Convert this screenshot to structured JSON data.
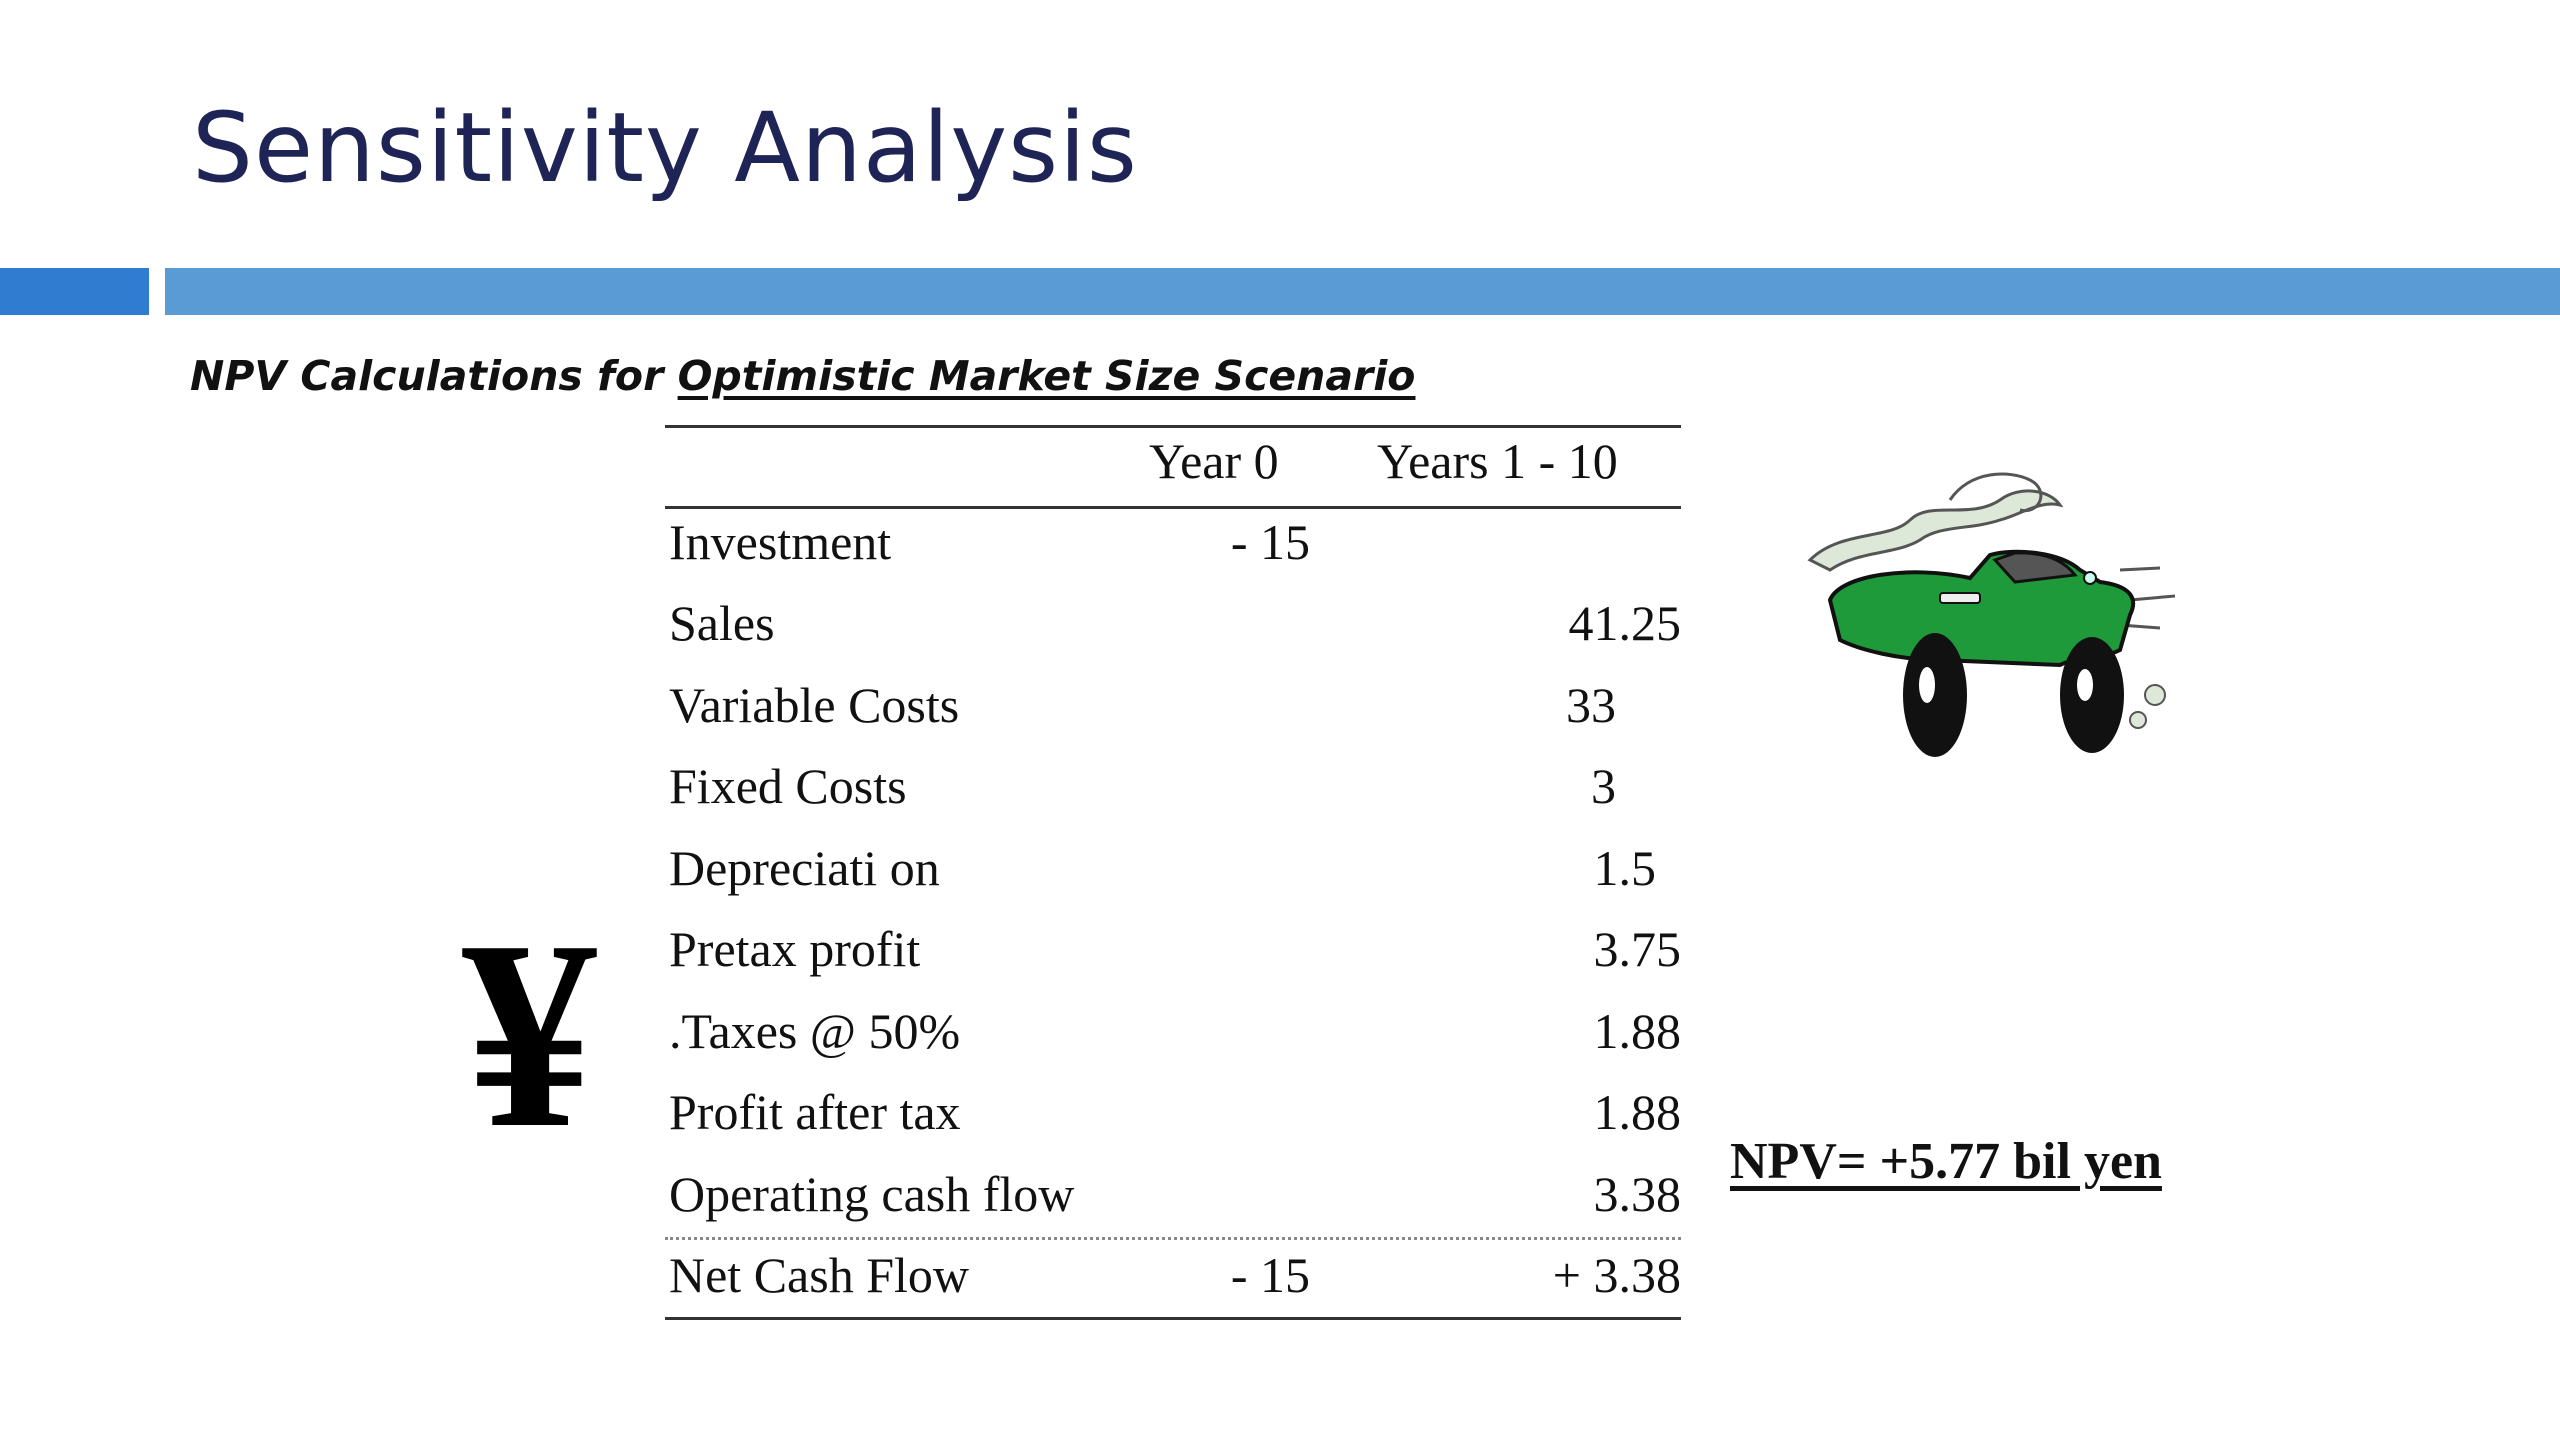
{
  "slide": {
    "title": "Sensitivity Analysis",
    "subtitle_prefix": "NPV Calculations for ",
    "subtitle_underlined": "Optimistic Market Size Scenario",
    "npv_text": "NPV=  +5.77 bil yen",
    "yen_symbol": "¥",
    "colors": {
      "title": "#1f2456",
      "accent_bar": "#5b9bd5",
      "accent_bar_small": "#2f7cd0",
      "car_body": "#1f9a3a"
    }
  },
  "table": {
    "headers": [
      "",
      "Year 0",
      "Years 1 - 10"
    ],
    "rows": [
      {
        "label": "Investment",
        "year0": "- 15",
        "years1_10": ""
      },
      {
        "label": "Sales",
        "year0": "",
        "years1_10": "41.25"
      },
      {
        "label": "Variable Costs",
        "year0": "",
        "years1_10": "33"
      },
      {
        "label": "Fixed Costs",
        "year0": "",
        "years1_10": "3"
      },
      {
        "label": "Depreciati on",
        "year0": "",
        "years1_10": "1.5"
      },
      {
        "label": "Pretax profit",
        "year0": "",
        "years1_10": "3.75"
      },
      {
        "label": ".Taxes @ 50%",
        "year0": "",
        "years1_10": "1.88"
      },
      {
        "label": "Profit after tax",
        "year0": "",
        "years1_10": "1.88"
      },
      {
        "label": "Operating cash flow",
        "year0": "",
        "years1_10": "3.38"
      }
    ],
    "total": {
      "label": "Net Cash Flow",
      "year0": "- 15",
      "years1_10": "+ 3.38"
    }
  },
  "icons": {
    "car": "smoking-car-illustration",
    "yen": "yen-icon"
  }
}
